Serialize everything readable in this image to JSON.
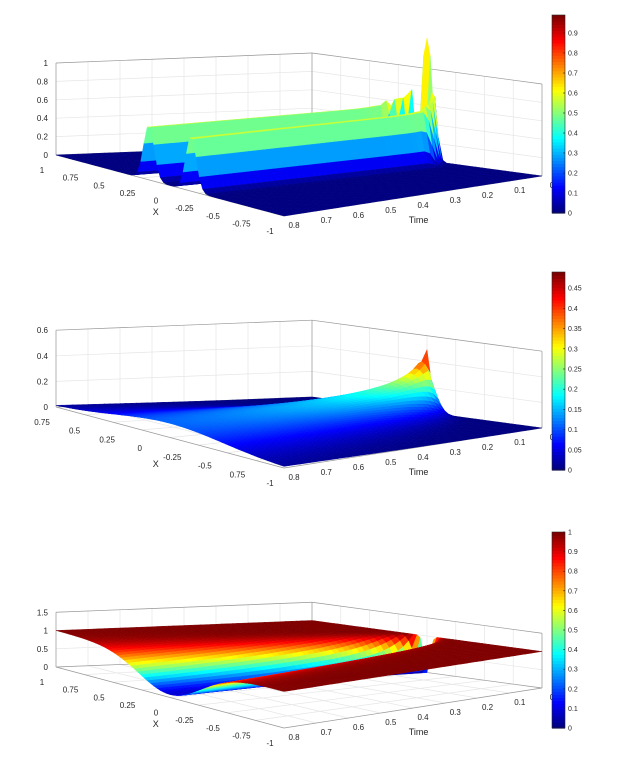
{
  "chart_data": [
    {
      "type": "surface",
      "xlabel": "X",
      "ylabel": "Time",
      "x_range": [
        -1,
        1
      ],
      "time_range": [
        0,
        0.8
      ],
      "zlim": [
        0,
        1
      ],
      "z_ticks": [
        "0",
        "0.2",
        "0.4",
        "0.6",
        "0.8",
        "1"
      ],
      "x_ticks": [
        "1",
        "0.75",
        "0.5",
        "0.25",
        "0",
        "-0.25",
        "-0.5",
        "-0.75",
        "-1"
      ],
      "time_ticks": [
        "0.8",
        "0.7",
        "0.6",
        "0.5",
        "0.4",
        "0.3",
        "0.2",
        "0.1",
        "0"
      ],
      "colorbar": {
        "range": [
          0,
          0.99
        ],
        "ticks": [
          "0",
          "0.1",
          "0.2",
          "0.3",
          "0.4",
          "0.5",
          "0.6",
          "0.7",
          "0.8",
          "0.9"
        ]
      },
      "colormap": "jet",
      "surface": {
        "shape": "two narrow pulses",
        "peak_value": 0.99,
        "peak_at": {
          "x": 0,
          "time": 0.02
        },
        "plateau_value": 0.6,
        "pulse_centers_at_late_time": [
          -0.19,
          0.18
        ]
      }
    },
    {
      "type": "surface",
      "xlabel": "X",
      "ylabel": "Time",
      "x_range": [
        -1,
        1
      ],
      "time_range": [
        0,
        0.8
      ],
      "zlim": [
        0,
        0.6
      ],
      "z_ticks": [
        "0",
        "0.2",
        "0.4",
        "0.6"
      ],
      "x_ticks": [
        "0.75",
        "0.5",
        "0.25",
        "0",
        "-0.25",
        "-0.5",
        "0.75",
        "-1"
      ],
      "time_ticks": [
        "0.8",
        "0.7",
        "0.6",
        "0.5",
        "0.4",
        "0.3",
        "0.2",
        "0.1",
        "0"
      ],
      "colorbar": {
        "range": [
          0,
          0.49
        ],
        "ticks": [
          "0",
          "0.05",
          "0.1",
          "0.15",
          "0.2",
          "0.25",
          "0.3",
          "0.35",
          "0.4",
          "0.45"
        ]
      },
      "colormap": "jet",
      "surface": {
        "shape": "single pulse spreading over time",
        "peak_value": 0.49,
        "peak_at": {
          "x": 0,
          "time": 0.02
        },
        "late_time_value": 0.12
      }
    },
    {
      "type": "surface",
      "xlabel": "X",
      "ylabel": "Time",
      "x_range": [
        -1,
        1
      ],
      "time_range": [
        0,
        0.8
      ],
      "zlim": [
        0,
        1.5
      ],
      "z_ticks": [
        "0",
        "0.5",
        "1",
        "1.5"
      ],
      "x_ticks": [
        "1",
        "0.75",
        "0.5",
        "0.25",
        "0",
        "-0.25",
        "-0.5",
        "-0.75",
        "-1"
      ],
      "time_ticks": [
        "0.8",
        "0.7",
        "0.6",
        "0.5",
        "0.4",
        "0.3",
        "0.2",
        "0.1",
        "0"
      ],
      "colorbar": {
        "range": [
          0,
          1
        ],
        "ticks": [
          "0",
          "0.1",
          "0.2",
          "0.3",
          "0.4",
          "0.5",
          "0.6",
          "0.7",
          "0.8",
          "0.9",
          "1"
        ]
      },
      "colormap": "jet",
      "surface": {
        "shape": "dip at x=0",
        "base_value": 1,
        "min_value": 0,
        "min_at": {
          "x": 0,
          "time": 0
        },
        "late_time_min": 0.08
      }
    }
  ]
}
